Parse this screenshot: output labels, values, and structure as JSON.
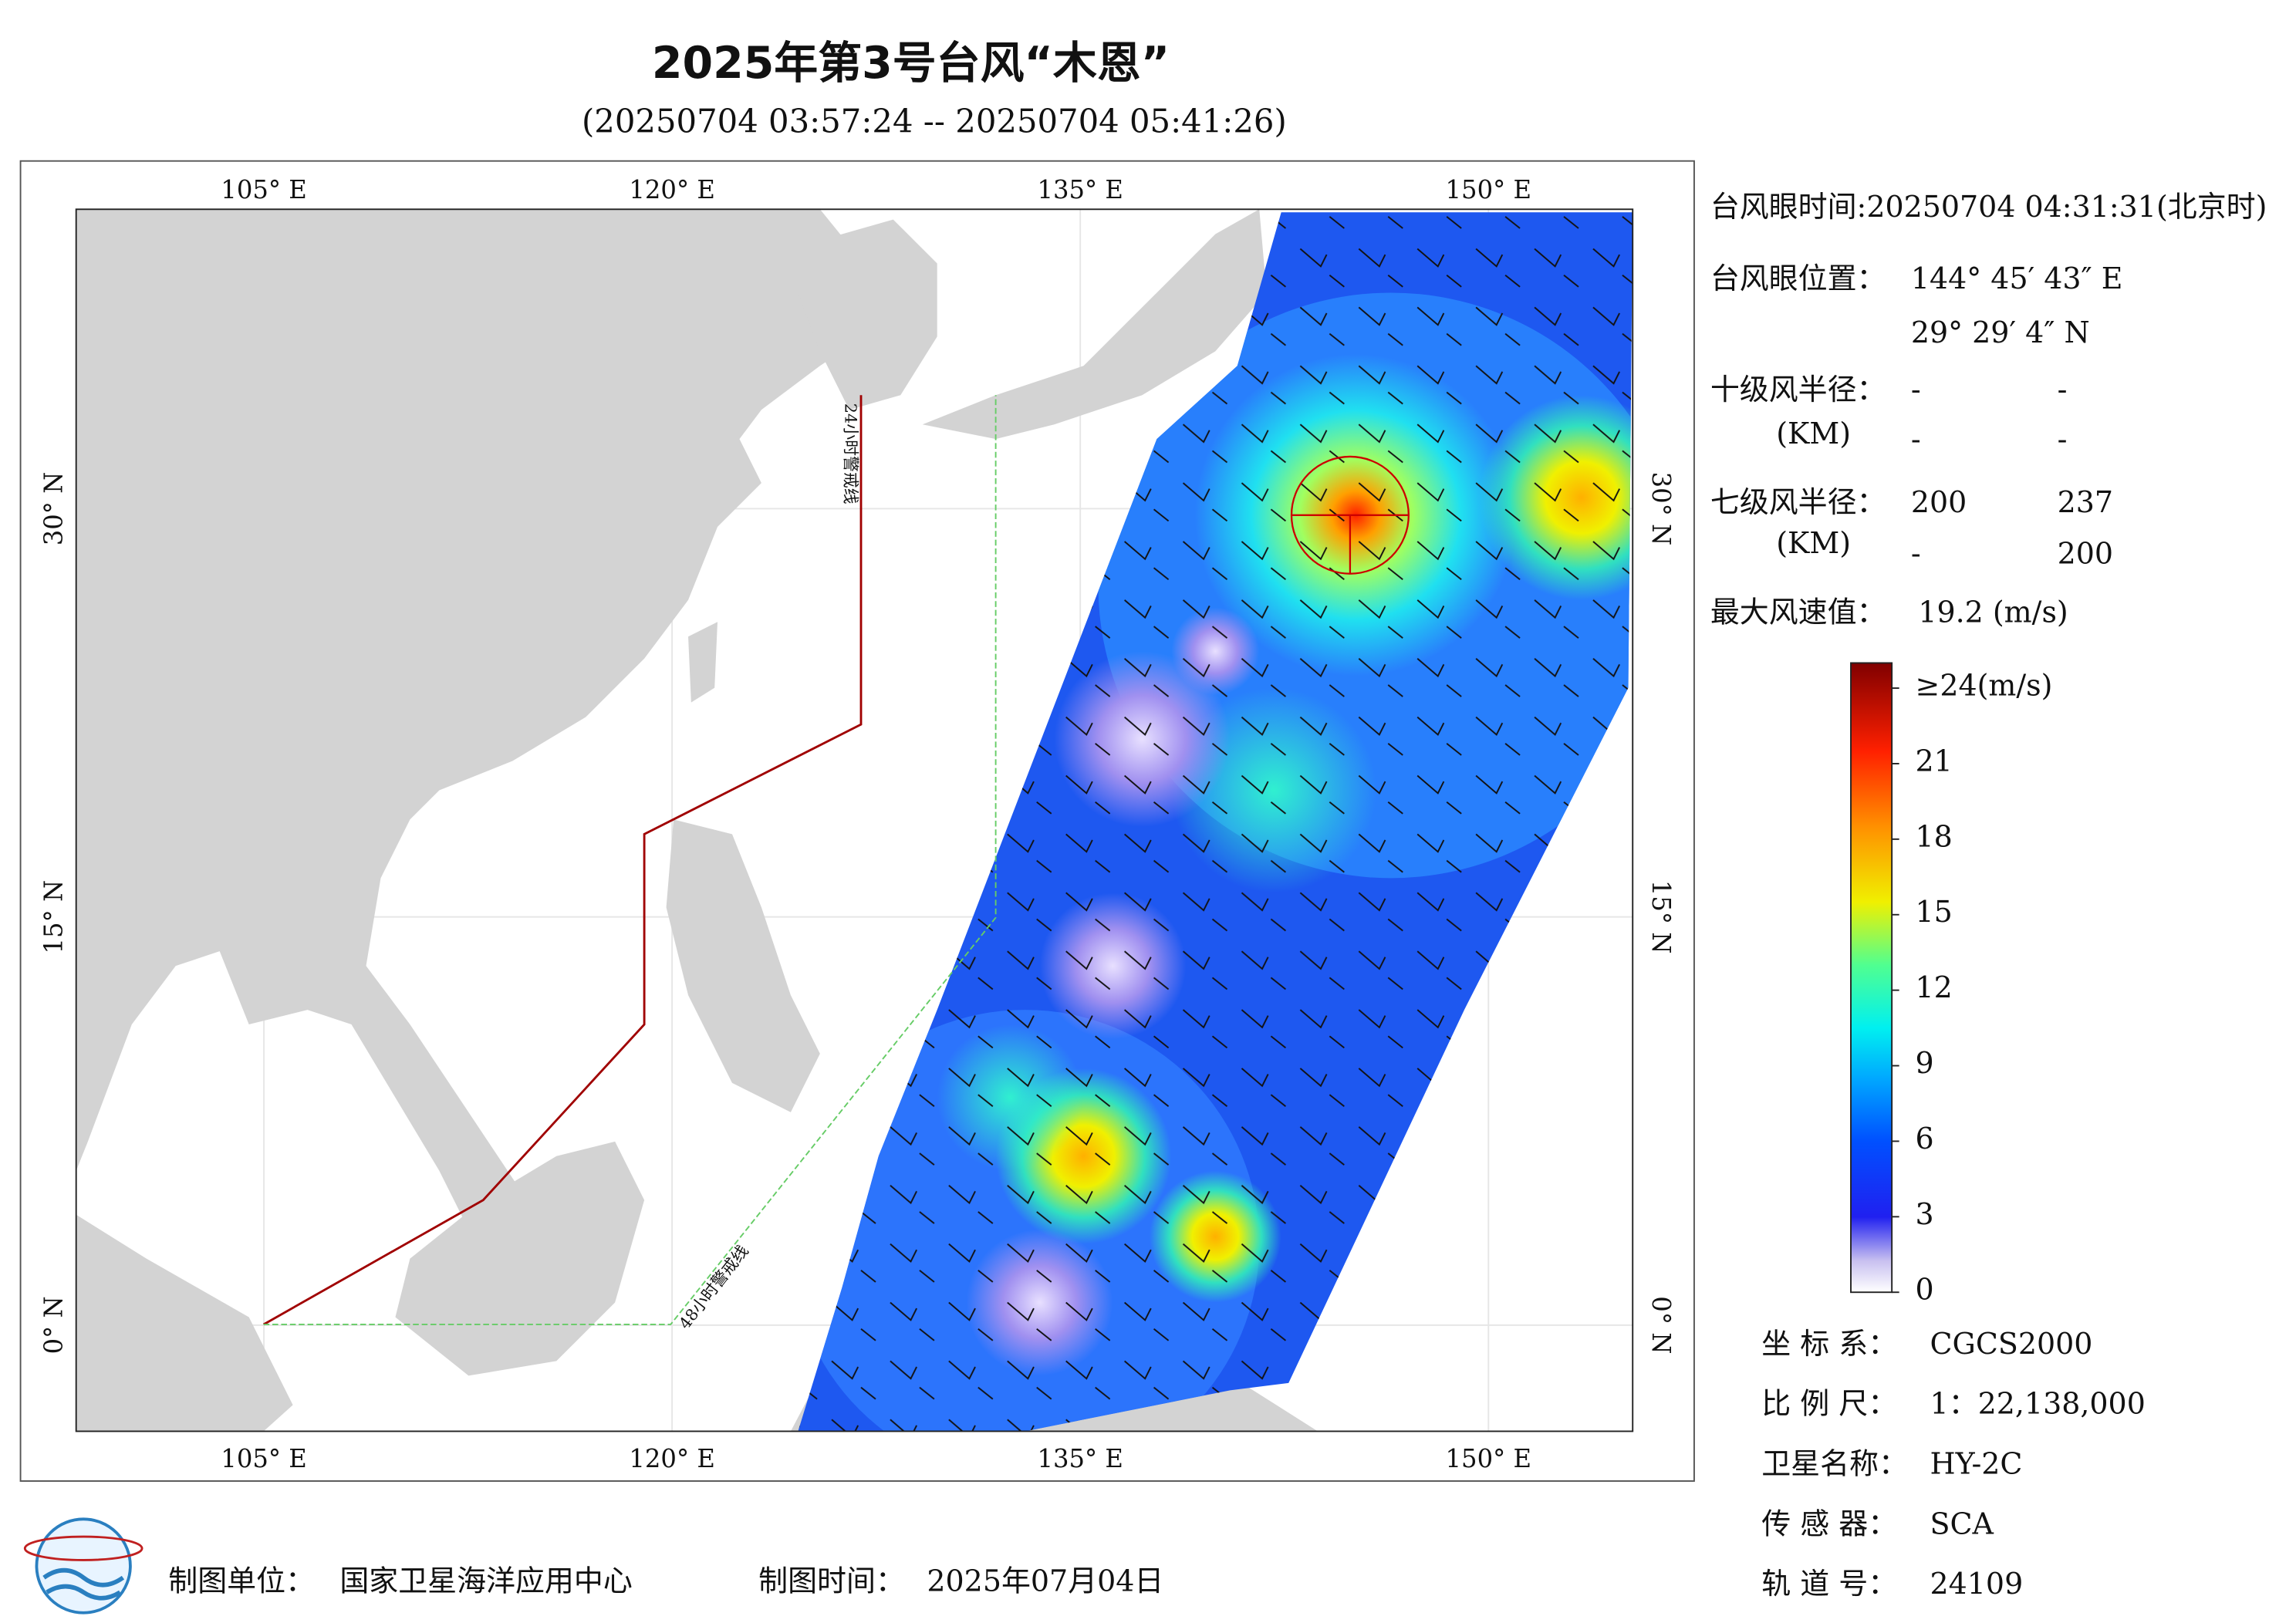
{
  "header": {
    "title": "2025年第3号台风“木恩”",
    "subtitle": "(20250704 03:57:24 -- 20250704 05:41:26)"
  },
  "map": {
    "xlim": [
      98.1,
      155.3
    ],
    "ylim": [
      -3.9,
      41
    ],
    "lonticks": [
      {
        "value": 105,
        "label": "105° E"
      },
      {
        "value": 120,
        "label": "120° E"
      },
      {
        "value": 135,
        "label": "135° E"
      },
      {
        "value": 150,
        "label": "150° E"
      }
    ],
    "latticks": [
      {
        "value": 0,
        "label": "0° N"
      },
      {
        "value": 15,
        "label": "15° N"
      },
      {
        "value": 30,
        "label": "30° N"
      }
    ],
    "warning_lines": [
      "24小时警戒线",
      "48小时警戒线"
    ]
  },
  "info": {
    "eye_time": "台风眼时间:20250704 04:31:31(北京时)",
    "eye_position_label": "台风眼位置：",
    "eye_lon": "144° 45′ 43″ E",
    "eye_lat": "29° 29′ 4″ N",
    "r10_label": "十级风半径：",
    "r10_unit": "(KM)",
    "r10_values": [
      "-",
      "-",
      "-",
      "-"
    ],
    "r7_label": "七级风半径：",
    "r7_unit": "(KM)",
    "r7_values": [
      "200",
      "237",
      "-",
      "200"
    ],
    "max_wind_label": "最大风速值：",
    "max_wind": "19.2 (m/s)"
  },
  "colorbar": {
    "lim": [
      0,
      25
    ],
    "ticks": [
      {
        "value": 24,
        "label": "≥24(m/s)"
      },
      21,
      18,
      15,
      12,
      9,
      6,
      3,
      0
    ]
  },
  "footer": {
    "unit_label": "制图单位：",
    "unit": "国家卫星海洋应用中心",
    "time_label": "制图时间：",
    "time": "2025年07月04日",
    "meta": [
      [
        "坐 标 系：",
        "CGCS2000"
      ],
      [
        "比 例 尺：",
        "1：22,138,000"
      ],
      [
        "卫星名称：",
        "HY-2C"
      ],
      [
        "传 感 器：",
        "SCA"
      ],
      [
        "轨 道 号：",
        "24109"
      ]
    ]
  }
}
